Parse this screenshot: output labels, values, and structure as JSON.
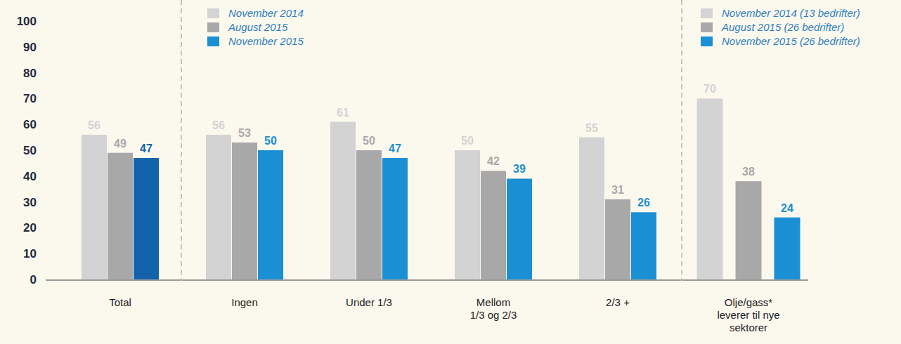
{
  "chart_data": [
    {
      "type": "bar",
      "categories": [
        "Total",
        "Ingen",
        "Under 1/3",
        "Mellom\n1/3 og 2/3",
        "2/3 +"
      ],
      "series": [
        {
          "name": "November 2014",
          "color": "#d3d3d3",
          "values": [
            56,
            56,
            61,
            50,
            55
          ]
        },
        {
          "name": "August 2015",
          "color": "#a8a8a8",
          "values": [
            49,
            53,
            50,
            42,
            31
          ]
        },
        {
          "name": "November 2015",
          "color": "#1b8fd3",
          "colors": [
            "#1263ab",
            "#1b8fd3",
            "#1b8fd3",
            "#1b8fd3",
            "#1b8fd3"
          ],
          "values": [
            47,
            50,
            47,
            39,
            26
          ]
        }
      ],
      "ylim": [
        0,
        100
      ],
      "yticks": [
        0,
        10,
        20,
        30,
        40,
        50,
        60,
        70,
        80,
        90,
        100
      ],
      "data_labels": true,
      "legend": "upper center"
    },
    {
      "type": "bar",
      "categories": [
        "Olje/gass*\nleverer til nye\nsektorer"
      ],
      "series": [
        {
          "name": "November 2014 (13 bedrifter)",
          "color": "#d3d3d3",
          "values": [
            70
          ]
        },
        {
          "name": "August 2015 (26 bedrifter)",
          "color": "#a8a8a8",
          "values": [
            38
          ]
        },
        {
          "name": "November 2015 (26 bedrifter)",
          "color": "#1b8fd3",
          "values": [
            24
          ]
        }
      ],
      "ylim": [
        0,
        100
      ],
      "data_labels": true,
      "legend": "upper right"
    }
  ]
}
